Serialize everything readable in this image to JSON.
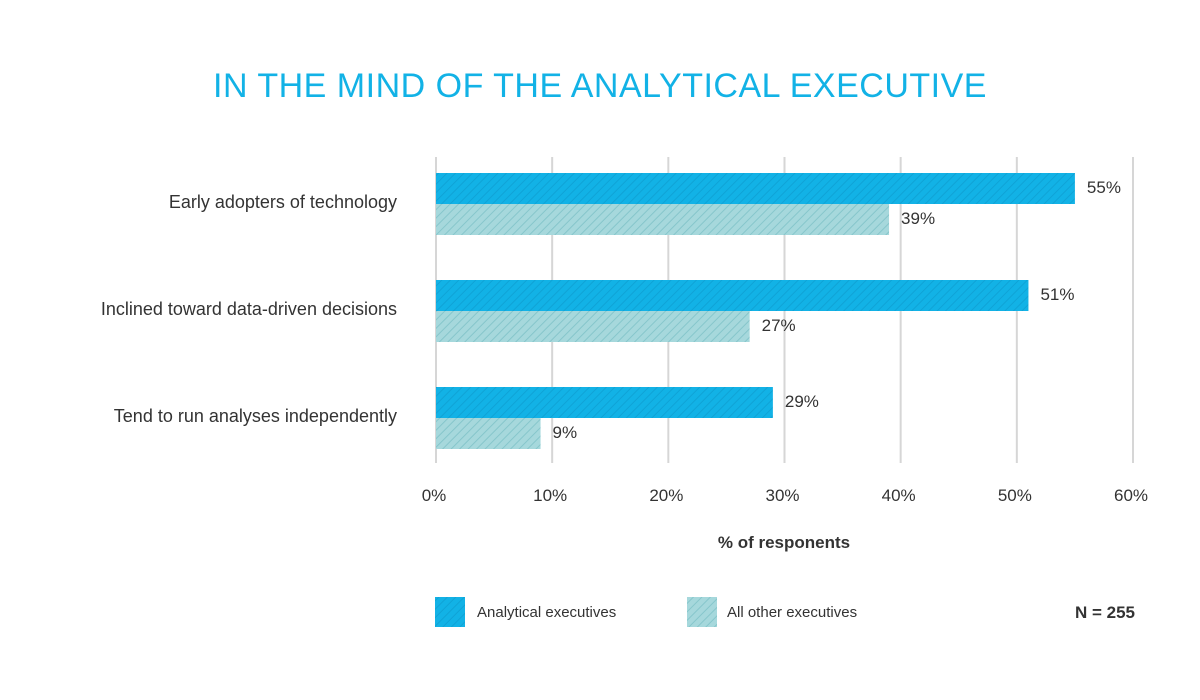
{
  "chart_data": {
    "type": "bar",
    "orientation": "horizontal",
    "title": "IN THE MIND OF THE ANALYTICAL EXECUTIVE",
    "categories": [
      "Early adopters of technology",
      "Inclined toward data-driven decisions",
      "Tend to run analyses independently"
    ],
    "series": [
      {
        "name": "Analytical executives",
        "values": [
          55,
          51,
          29
        ],
        "color": "#12b2e6"
      },
      {
        "name": "All other executives",
        "values": [
          39,
          27,
          9
        ],
        "color": "#9fd4d8"
      }
    ],
    "value_suffix": "%",
    "xlim": [
      0,
      60
    ],
    "xticks": [
      "0%",
      "10%",
      "20%",
      "30%",
      "40%",
      "50%",
      "60%"
    ],
    "xlabel": "% of responents",
    "grid": true,
    "legend_position": "bottom",
    "note": "N = 255"
  }
}
